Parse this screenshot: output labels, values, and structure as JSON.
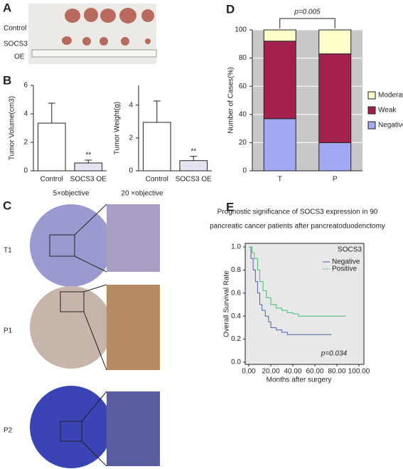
{
  "panel_labels": [
    "A",
    "B",
    "C",
    "D",
    "E"
  ],
  "photo_a": {
    "labels": [
      "Control",
      "SOCS3",
      "OE"
    ]
  },
  "photo_c": {
    "column_labels": [
      "5×objective",
      "20 ×objective"
    ],
    "row_labels": [
      "T1",
      "P1",
      "P2"
    ]
  },
  "chart_data": [
    {
      "type": "bar",
      "ylabel": "Tumor Volume(cm3)",
      "categories": [
        "Control",
        "SOCS3 OE"
      ],
      "values": [
        3.35,
        0.55
      ],
      "errors": [
        1.4,
        0.2
      ],
      "annotations": [
        null,
        "**"
      ],
      "color": "#ffffff",
      "ylim": [
        0,
        6
      ],
      "yticks": [
        0,
        2,
        4,
        6
      ]
    },
    {
      "type": "bar",
      "ylabel": "Tumor Weight(g)",
      "categories": [
        "Control",
        "SOCS3 OE"
      ],
      "values": [
        2.95,
        0.62
      ],
      "errors": [
        1.3,
        0.26
      ],
      "annotations": [
        null,
        "**"
      ],
      "color": "#ffffff",
      "ylim": [
        0,
        5.2
      ],
      "yticks": [
        0,
        2,
        4
      ]
    },
    {
      "type": "stacked_bar",
      "title": "p=0.005",
      "ylabel": "Number of Cases(%)",
      "categories": [
        "T",
        "P"
      ],
      "series": [
        {
          "name": "Negative",
          "color": "#a3a8f2",
          "values": [
            37,
            20
          ]
        },
        {
          "name": "Weak",
          "color": "#a3204f",
          "values": [
            55,
            63
          ]
        },
        {
          "name": "Moderate",
          "color": "#ffffcc",
          "values": [
            8,
            17
          ]
        }
      ],
      "ylim": [
        0,
        100
      ],
      "yticks": [
        0,
        20,
        40,
        60,
        80,
        100
      ],
      "grid": true,
      "legend": "right"
    },
    {
      "type": "step",
      "title": [
        "Prognostic significance of SOCS3 expression in 90",
        "pancreatic cancer patients after pancreatoduodenctomy"
      ],
      "xlabel": "Months after surgery",
      "ylabel": "Overall Survival Rate",
      "legend_title": "SOCS3",
      "annotation": "p=0.034",
      "series": [
        {
          "name": "Negative",
          "color": "#5060b0",
          "x": [
            0,
            2,
            4,
            6,
            8,
            10,
            12,
            15,
            18,
            20,
            25,
            30,
            35,
            45,
            75
          ],
          "y": [
            1.0,
            0.9,
            0.8,
            0.7,
            0.6,
            0.5,
            0.45,
            0.4,
            0.35,
            0.3,
            0.28,
            0.26,
            0.24,
            0.24,
            0.24
          ]
        },
        {
          "name": "Positive",
          "color": "#40c070",
          "x": [
            0,
            3,
            5,
            8,
            10,
            13,
            16,
            20,
            25,
            30,
            35,
            40,
            45,
            60,
            88
          ],
          "y": [
            1.0,
            0.95,
            0.9,
            0.8,
            0.7,
            0.62,
            0.56,
            0.5,
            0.47,
            0.45,
            0.43,
            0.42,
            0.4,
            0.4,
            0.4
          ]
        }
      ],
      "xlim": [
        0,
        100
      ],
      "xticks": [
        {
          "value": 0,
          "label": "0.00"
        },
        {
          "value": 20,
          "label": "20.00"
        },
        {
          "value": 40,
          "label": "40.00"
        },
        {
          "value": 60,
          "label": "60.00"
        },
        {
          "value": 80,
          "label": "80.00"
        },
        {
          "value": 100,
          "label": "100.00"
        }
      ],
      "ylim": [
        0,
        1
      ],
      "yticks": [
        {
          "value": 0,
          "label": "0.0"
        },
        0.2,
        0.4,
        0.6,
        0.8,
        {
          "value": 1,
          "label": "1.0"
        }
      ]
    }
  ]
}
